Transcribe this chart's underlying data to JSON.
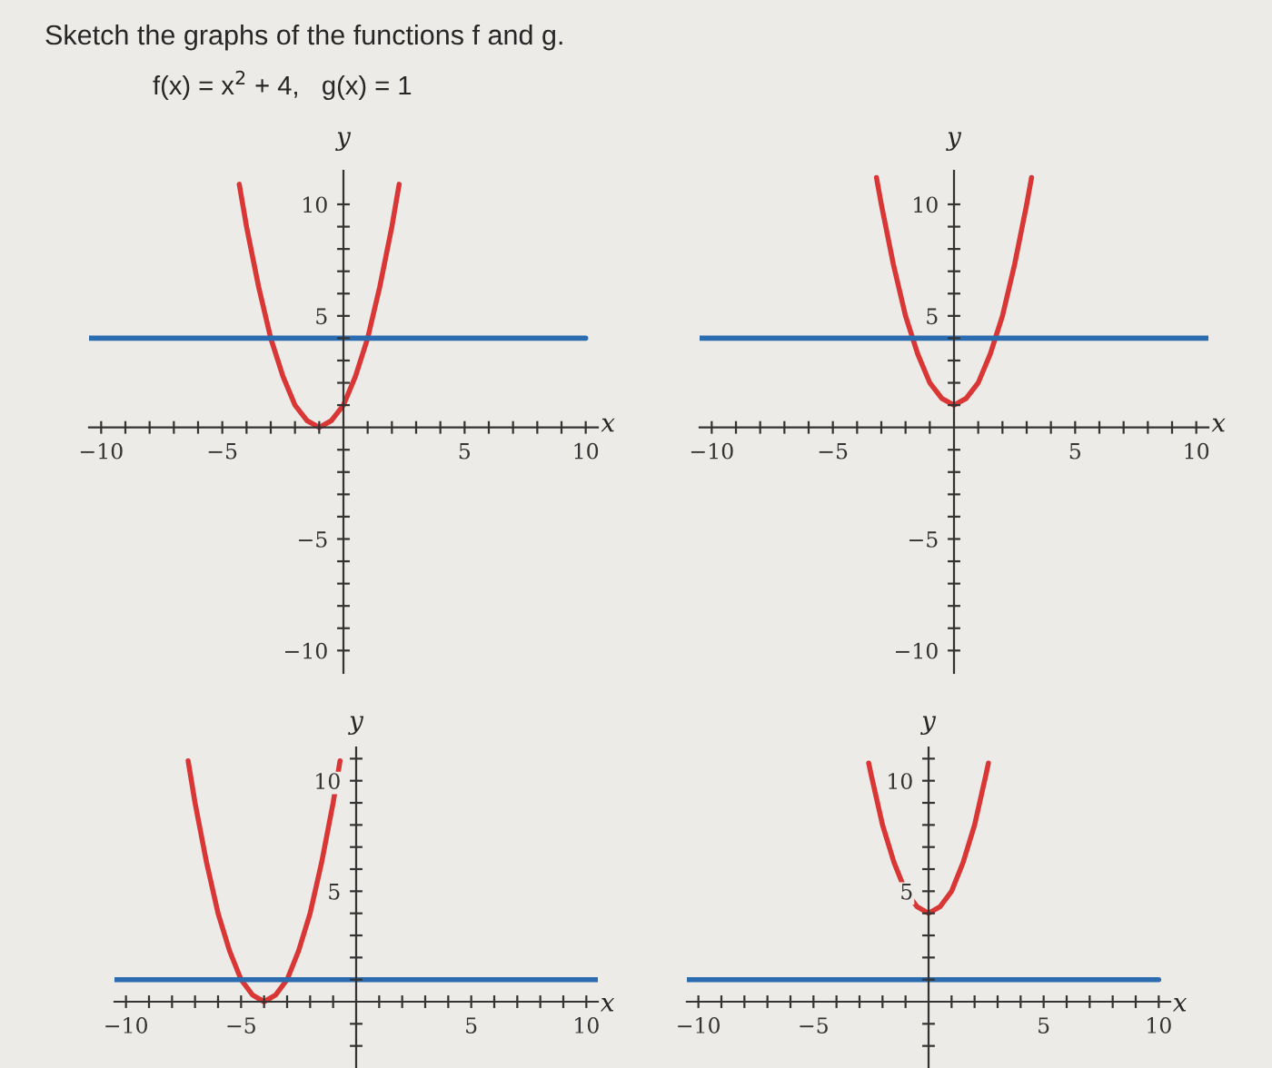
{
  "chart_data": [
    {
      "type": "line",
      "title": "Sketch the graphs of the functions f and g.",
      "subtitle": "f(x) = x$^{2}$ + 4,   g(x) = 1",
      "xlabel": "x",
      "ylabel": "y",
      "series": [
        {
          "color": "#d93636",
          "x": [
            -4.3,
            -4,
            -3.5,
            -3,
            -2.5,
            -2,
            -1.5,
            -1,
            -0.5,
            0,
            0.5,
            1,
            1.5,
            2,
            2.3
          ],
          "values": [
            10.9,
            9,
            6.3,
            4,
            2.3,
            1,
            0.3,
            0,
            0.3,
            1,
            2.3,
            4,
            6.3,
            9,
            10.9
          ]
        },
        {
          "color": "#2b6cb0",
          "x": [
            -10.5,
            10
          ],
          "values": [
            4,
            4
          ]
        }
      ],
      "xlim": [
        -10.5,
        10.5
      ],
      "ylim": [
        -11,
        11.5
      ],
      "xticks": [
        {
          "value": -10,
          "label": "−10"
        },
        {
          "value": -9,
          "label": null
        },
        {
          "value": -8,
          "label": null
        },
        {
          "value": -7,
          "label": null
        },
        {
          "value": -6,
          "label": null
        },
        {
          "value": -5,
          "label": "−5"
        },
        {
          "value": -4,
          "label": null
        },
        {
          "value": -3,
          "label": null
        },
        {
          "value": -2,
          "label": null
        },
        {
          "value": -1,
          "label": null
        },
        {
          "value": 1,
          "label": null
        },
        {
          "value": 2,
          "label": null
        },
        {
          "value": 3,
          "label": null
        },
        {
          "value": 4,
          "label": null
        },
        5,
        {
          "value": 6,
          "label": null
        },
        {
          "value": 7,
          "label": null
        },
        {
          "value": 8,
          "label": null
        },
        {
          "value": 9,
          "label": null
        },
        10
      ],
      "yticks": [
        {
          "value": -10,
          "label": "−10"
        },
        {
          "value": -9,
          "label": null
        },
        {
          "value": -8,
          "label": null
        },
        {
          "value": -7,
          "label": null
        },
        {
          "value": -6,
          "label": null
        },
        {
          "value": -5,
          "label": "−5"
        },
        {
          "value": -4,
          "label": null
        },
        {
          "value": -3,
          "label": null
        },
        {
          "value": -2,
          "label": null
        },
        {
          "value": -1,
          "label": null
        },
        {
          "value": 1,
          "label": null
        },
        {
          "value": 2,
          "label": null
        },
        {
          "value": 3,
          "label": null
        },
        {
          "value": 4,
          "label": null
        },
        5,
        {
          "value": 6,
          "label": null
        },
        {
          "value": 7,
          "label": null
        },
        {
          "value": 8,
          "label": null
        },
        {
          "value": 9,
          "label": null
        },
        10
      ]
    },
    {
      "type": "line",
      "xlabel": "x",
      "ylabel": "y",
      "series": [
        {
          "color": "#d93636",
          "x": [
            -3.2,
            -3,
            -2.5,
            -2,
            -1.5,
            -1,
            -0.5,
            0,
            0.5,
            1,
            1.5,
            2,
            2.5,
            3,
            3.2
          ],
          "values": [
            11.2,
            10,
            7.3,
            5,
            3.3,
            2,
            1.3,
            1,
            1.3,
            2,
            3.3,
            5,
            7.3,
            10,
            11.2
          ]
        },
        {
          "color": "#2b6cb0",
          "x": [
            -10.5,
            10.5
          ],
          "values": [
            4,
            4
          ]
        }
      ],
      "xlim": [
        -10.5,
        10.5
      ],
      "ylim": [
        -11,
        11.5
      ],
      "xticks": [
        {
          "value": -10,
          "label": "−10"
        },
        {
          "value": -9,
          "label": null
        },
        {
          "value": -8,
          "label": null
        },
        {
          "value": -7,
          "label": null
        },
        {
          "value": -6,
          "label": null
        },
        {
          "value": -5,
          "label": "−5"
        },
        {
          "value": -4,
          "label": null
        },
        {
          "value": -3,
          "label": null
        },
        {
          "value": -2,
          "label": null
        },
        {
          "value": -1,
          "label": null
        },
        {
          "value": 1,
          "label": null
        },
        {
          "value": 2,
          "label": null
        },
        {
          "value": 3,
          "label": null
        },
        {
          "value": 4,
          "label": null
        },
        5,
        {
          "value": 6,
          "label": null
        },
        {
          "value": 7,
          "label": null
        },
        {
          "value": 8,
          "label": null
        },
        {
          "value": 9,
          "label": null
        },
        10
      ],
      "yticks": [
        {
          "value": -10,
          "label": "−10"
        },
        {
          "value": -9,
          "label": null
        },
        {
          "value": -8,
          "label": null
        },
        {
          "value": -7,
          "label": null
        },
        {
          "value": -6,
          "label": null
        },
        {
          "value": -5,
          "label": "−5"
        },
        {
          "value": -4,
          "label": null
        },
        {
          "value": -3,
          "label": null
        },
        {
          "value": -2,
          "label": null
        },
        {
          "value": -1,
          "label": null
        },
        {
          "value": 1,
          "label": null
        },
        {
          "value": 2,
          "label": null
        },
        {
          "value": 3,
          "label": null
        },
        {
          "value": 4,
          "label": null
        },
        5,
        {
          "value": 6,
          "label": null
        },
        {
          "value": 7,
          "label": null
        },
        {
          "value": 8,
          "label": null
        },
        {
          "value": 9,
          "label": null
        },
        10
      ]
    },
    {
      "type": "line",
      "xlabel": "x",
      "ylabel": "y",
      "series": [
        {
          "color": "#d93636",
          "x": [
            -7.3,
            -7,
            -6.5,
            -6,
            -5.5,
            -5,
            -4.5,
            -4,
            -3.5,
            -3,
            -2.5,
            -2,
            -1.5,
            -1,
            -0.7
          ],
          "values": [
            10.9,
            9,
            6.3,
            4,
            2.3,
            1,
            0.3,
            0,
            0.3,
            1,
            2.3,
            4,
            6.3,
            9,
            10.9
          ]
        },
        {
          "color": "#2b6cb0",
          "x": [
            -10.5,
            10.5
          ],
          "values": [
            1,
            1
          ]
        }
      ],
      "xlim": [
        -10.5,
        10.5
      ],
      "ylim": [
        -3,
        11.5
      ],
      "xticks": [
        {
          "value": -10,
          "label": "−10"
        },
        {
          "value": -9,
          "label": null
        },
        {
          "value": -8,
          "label": null
        },
        {
          "value": -7,
          "label": null
        },
        {
          "value": -6,
          "label": null
        },
        {
          "value": -5,
          "label": "−5"
        },
        {
          "value": -4,
          "label": null
        },
        {
          "value": -3,
          "label": null
        },
        {
          "value": -2,
          "label": null
        },
        {
          "value": -1,
          "label": null
        },
        {
          "value": 1,
          "label": null
        },
        {
          "value": 2,
          "label": null
        },
        {
          "value": 3,
          "label": null
        },
        {
          "value": 4,
          "label": null
        },
        5,
        {
          "value": 6,
          "label": null
        },
        {
          "value": 7,
          "label": null
        },
        {
          "value": 8,
          "label": null
        },
        {
          "value": 9,
          "label": null
        },
        10
      ],
      "yticks": [
        {
          "value": -2,
          "label": null
        },
        {
          "value": -1,
          "label": null
        },
        {
          "value": 1,
          "label": null
        },
        {
          "value": 2,
          "label": null
        },
        {
          "value": 3,
          "label": null
        },
        {
          "value": 4,
          "label": null
        },
        5,
        {
          "value": 6,
          "label": null
        },
        {
          "value": 7,
          "label": null
        },
        {
          "value": 8,
          "label": null
        },
        {
          "value": 9,
          "label": null
        },
        10,
        {
          "value": 11,
          "label": null
        }
      ]
    },
    {
      "type": "line",
      "xlabel": "x",
      "ylabel": "y",
      "series": [
        {
          "color": "#d93636",
          "x": [
            -2.6,
            -2.5,
            -2,
            -1.5,
            -1,
            -0.5,
            0,
            0.5,
            1,
            1.5,
            2,
            2.5,
            2.6
          ],
          "values": [
            10.8,
            10.3,
            8,
            6.3,
            5,
            4.3,
            4,
            4.3,
            5,
            6.3,
            8,
            10.3,
            10.8
          ]
        },
        {
          "color": "#2b6cb0",
          "x": [
            -10.5,
            10
          ],
          "values": [
            1,
            1
          ]
        }
      ],
      "xlim": [
        -10.5,
        10.5
      ],
      "ylim": [
        -3,
        11.5
      ],
      "xticks": [
        {
          "value": -10,
          "label": "−10"
        },
        {
          "value": -9,
          "label": null
        },
        {
          "value": -8,
          "label": null
        },
        {
          "value": -7,
          "label": null
        },
        {
          "value": -6,
          "label": null
        },
        {
          "value": -5,
          "label": "−5"
        },
        {
          "value": -4,
          "label": null
        },
        {
          "value": -3,
          "label": null
        },
        {
          "value": -2,
          "label": null
        },
        {
          "value": -1,
          "label": null
        },
        {
          "value": 1,
          "label": null
        },
        {
          "value": 2,
          "label": null
        },
        {
          "value": 3,
          "label": null
        },
        {
          "value": 4,
          "label": null
        },
        5,
        {
          "value": 6,
          "label": null
        },
        {
          "value": 7,
          "label": null
        },
        {
          "value": 8,
          "label": null
        },
        {
          "value": 9,
          "label": null
        },
        10
      ],
      "yticks": [
        {
          "value": -2,
          "label": null
        },
        {
          "value": -1,
          "label": null
        },
        {
          "value": 1,
          "label": null
        },
        {
          "value": 2,
          "label": null
        },
        {
          "value": 3,
          "label": null
        },
        {
          "value": 4,
          "label": null
        },
        5,
        {
          "value": 6,
          "label": null
        },
        {
          "value": 7,
          "label": null
        },
        {
          "value": 8,
          "label": null
        },
        {
          "value": 9,
          "label": null
        },
        10,
        {
          "value": 11,
          "label": null
        }
      ]
    }
  ]
}
